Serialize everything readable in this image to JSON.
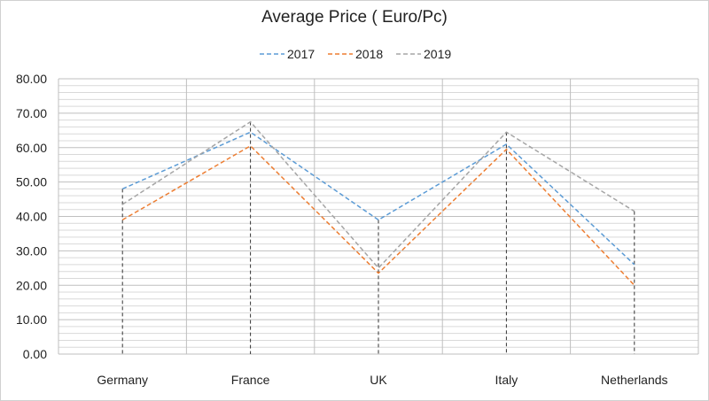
{
  "chart_data": {
    "type": "line",
    "title": "Average Price ( Euro/Pc)",
    "xlabel": "",
    "ylabel": "",
    "categories": [
      "Germany",
      "France",
      "UK",
      "Italy",
      "Netherlands"
    ],
    "y_ticks": [
      "0.00",
      "10.00",
      "20.00",
      "30.00",
      "40.00",
      "50.00",
      "60.00",
      "70.00",
      "80.00"
    ],
    "ylim": [
      0,
      80
    ],
    "grid": true,
    "legend_position": "top",
    "series": [
      {
        "name": "2017",
        "color": "#5b9bd5",
        "values": [
          48.0,
          64.5,
          39.0,
          61.0,
          26.0
        ]
      },
      {
        "name": "2018",
        "color": "#ed7d31",
        "values": [
          39.0,
          60.5,
          23.5,
          59.5,
          20.0
        ]
      },
      {
        "name": "2019",
        "color": "#a5a5a5",
        "values": [
          43.5,
          67.5,
          25.0,
          64.5,
          41.5
        ]
      }
    ]
  }
}
